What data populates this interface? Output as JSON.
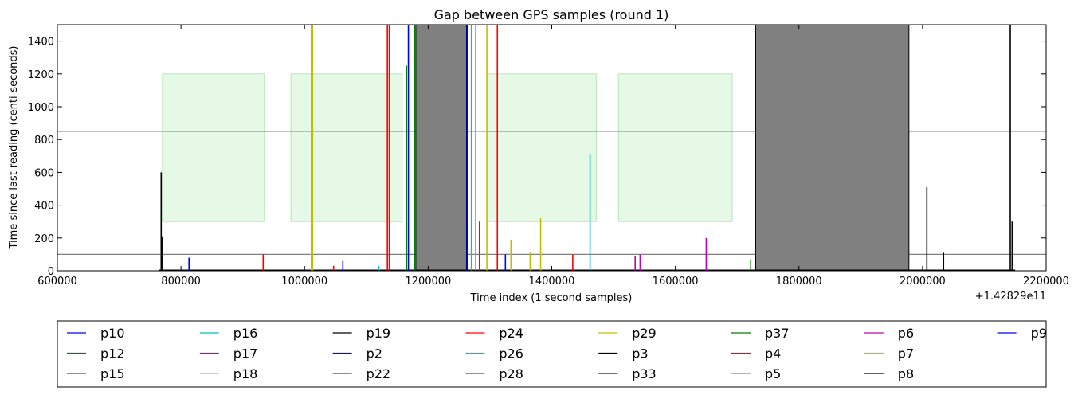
{
  "chart_data": {
    "type": "line",
    "title": "Gap between GPS samples (round 1)",
    "xlabel": "Time index (1 second samples)",
    "ylabel": "Time since last reading (centi-seconds)",
    "x_offset_label": "+1.42829e11",
    "xlim": [
      600000,
      2200000
    ],
    "ylim": [
      0,
      1500
    ],
    "xticks": [
      600000,
      800000,
      1000000,
      1200000,
      1400000,
      1600000,
      1800000,
      2000000,
      2200000
    ],
    "yticks": [
      0,
      200,
      400,
      600,
      800,
      1000,
      1200,
      1400
    ],
    "xtick_labels": [
      "600000",
      "800000",
      "1000000",
      "1200000",
      "1400000",
      "1600000",
      "1800000",
      "2000000",
      "2200000"
    ],
    "ytick_labels": [
      "0",
      "200",
      "400",
      "600",
      "800",
      "1000",
      "1200",
      "1400"
    ],
    "hlines": [
      850,
      100
    ],
    "shaded_regions": [
      {
        "x0": 770000,
        "x1": 935000,
        "y0": 300,
        "y1": 1200,
        "color": "#e6f9e6"
      },
      {
        "x0": 978000,
        "x1": 1158000,
        "y0": 300,
        "y1": 1200,
        "color": "#e6f9e6"
      },
      {
        "x0": 1295000,
        "x1": 1472000,
        "y0": 300,
        "y1": 1200,
        "color": "#e6f9e6"
      },
      {
        "x0": 1508000,
        "x1": 1692000,
        "y0": 300,
        "y1": 1200,
        "color": "#e6f9e6"
      }
    ],
    "dense_blocks": [
      {
        "x0": 1180000,
        "x1": 1262000,
        "color": "#808080"
      },
      {
        "x0": 1730000,
        "x1": 1978000,
        "color": "#808080"
      }
    ],
    "spikes": [
      {
        "x": 768000,
        "y": 600,
        "color": "#000000"
      },
      {
        "x": 770000,
        "y": 210,
        "color": "#000000"
      },
      {
        "x": 813000,
        "y": 80,
        "color": "#0000ff"
      },
      {
        "x": 933000,
        "y": 100,
        "color": "#ff0000"
      },
      {
        "x": 1011000,
        "y": 1500,
        "color": "#bfbf00"
      },
      {
        "x": 1013000,
        "y": 1500,
        "color": "#bfbf00"
      },
      {
        "x": 1047000,
        "y": 30,
        "color": "#ff0000"
      },
      {
        "x": 1062000,
        "y": 60,
        "color": "#0000ff"
      },
      {
        "x": 1120000,
        "y": 30,
        "color": "#00bfbf"
      },
      {
        "x": 1134000,
        "y": 1500,
        "color": "#ff0000"
      },
      {
        "x": 1137000,
        "y": 1500,
        "color": "#ff0000"
      },
      {
        "x": 1165000,
        "y": 1250,
        "color": "#008000"
      },
      {
        "x": 1168000,
        "y": 1500,
        "color": "#0000ff"
      },
      {
        "x": 1178000,
        "y": 1500,
        "color": "#008000"
      },
      {
        "x": 1263000,
        "y": 1500,
        "color": "#0000ff"
      },
      {
        "x": 1270000,
        "y": 1500,
        "color": "#00bfbf"
      },
      {
        "x": 1277000,
        "y": 1500,
        "color": "#00bfbf"
      },
      {
        "x": 1283000,
        "y": 300,
        "color": "#bf00bf"
      },
      {
        "x": 1295000,
        "y": 1500,
        "color": "#bfbf00"
      },
      {
        "x": 1312000,
        "y": 1500,
        "color": "#ff0000"
      },
      {
        "x": 1325000,
        "y": 100,
        "color": "#0000ff"
      },
      {
        "x": 1334000,
        "y": 190,
        "color": "#bfbf00"
      },
      {
        "x": 1365000,
        "y": 110,
        "color": "#bfbf00"
      },
      {
        "x": 1382000,
        "y": 320,
        "color": "#bfbf00"
      },
      {
        "x": 1434000,
        "y": 100,
        "color": "#ff0000"
      },
      {
        "x": 1462000,
        "y": 710,
        "color": "#00bfbf"
      },
      {
        "x": 1535000,
        "y": 90,
        "color": "#bf00bf"
      },
      {
        "x": 1543000,
        "y": 100,
        "color": "#bf00bf"
      },
      {
        "x": 1650000,
        "y": 200,
        "color": "#bf00bf"
      },
      {
        "x": 1722000,
        "y": 70,
        "color": "#008000"
      },
      {
        "x": 2007000,
        "y": 510,
        "color": "#000000"
      },
      {
        "x": 2034000,
        "y": 110,
        "color": "#000000"
      },
      {
        "x": 2142000,
        "y": 1500,
        "color": "#000000"
      },
      {
        "x": 2145000,
        "y": 300,
        "color": "#000000"
      }
    ],
    "series": [
      {
        "name": "p10",
        "color": "#0000ff"
      },
      {
        "name": "p12",
        "color": "#008000"
      },
      {
        "name": "p15",
        "color": "#ff0000"
      },
      {
        "name": "p16",
        "color": "#00bfbf"
      },
      {
        "name": "p17",
        "color": "#bf00bf"
      },
      {
        "name": "p18",
        "color": "#bfbf00"
      },
      {
        "name": "p19",
        "color": "#000000"
      },
      {
        "name": "p2",
        "color": "#0000ff"
      },
      {
        "name": "p22",
        "color": "#008000"
      },
      {
        "name": "p24",
        "color": "#ff0000"
      },
      {
        "name": "p26",
        "color": "#00bfbf"
      },
      {
        "name": "p28",
        "color": "#bf00bf"
      },
      {
        "name": "p29",
        "color": "#bfbf00"
      },
      {
        "name": "p3",
        "color": "#000000"
      },
      {
        "name": "p33",
        "color": "#0000ff"
      },
      {
        "name": "p37",
        "color": "#008000"
      },
      {
        "name": "p4",
        "color": "#ff0000"
      },
      {
        "name": "p5",
        "color": "#00bfbf"
      },
      {
        "name": "p6",
        "color": "#bf00bf"
      },
      {
        "name": "p7",
        "color": "#bfbf00"
      },
      {
        "name": "p8",
        "color": "#000000"
      },
      {
        "name": "p9",
        "color": "#0000ff"
      }
    ],
    "legend_position": "below",
    "legend_columns": 8,
    "grid": false
  }
}
